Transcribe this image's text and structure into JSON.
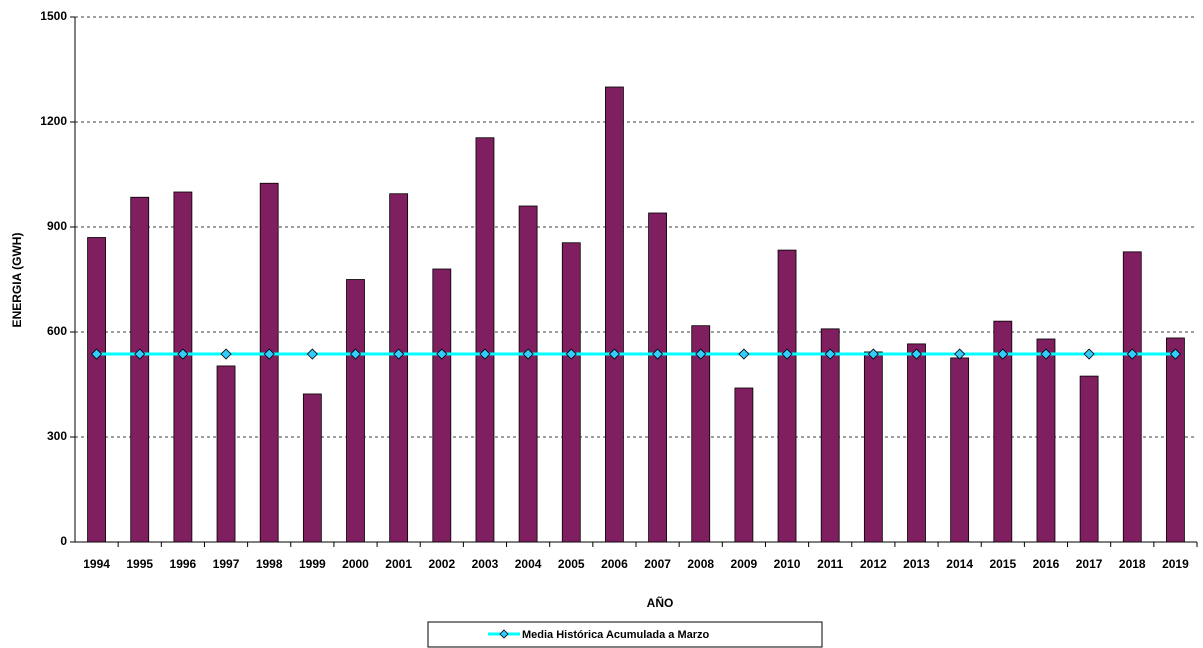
{
  "chart_data": {
    "type": "bar",
    "x_label": "AÑO",
    "y_label": "ENERGIA (GWH)",
    "categories": [
      "1994",
      "1995",
      "1996",
      "1997",
      "1998",
      "1999",
      "2000",
      "2001",
      "2002",
      "2003",
      "2004",
      "2005",
      "2006",
      "2007",
      "2008",
      "2009",
      "2010",
      "2011",
      "2012",
      "2013",
      "2014",
      "2015",
      "2016",
      "2017",
      "2018",
      "2019"
    ],
    "series": [
      {
        "type": "bar",
        "color": "#801f5f",
        "values": [
          870,
          985,
          1000,
          503,
          1025,
          423,
          750,
          995,
          780,
          1155,
          960,
          855,
          1300,
          940,
          618,
          440,
          834,
          609,
          543,
          566,
          526,
          631,
          580,
          474,
          829,
          583
        ]
      },
      {
        "type": "line",
        "name": "Media Histórica Acumulada a Marzo",
        "color": "#00ffff",
        "marker_color": "#33ccff",
        "values": [
          537,
          537,
          537,
          537,
          537,
          537,
          537,
          537,
          537,
          537,
          537,
          537,
          537,
          537,
          537,
          537,
          537,
          537,
          537,
          537,
          537,
          537,
          537,
          537,
          537,
          537
        ]
      }
    ],
    "ylim": [
      0,
      1500
    ],
    "yticks": [
      0,
      300,
      600,
      900,
      1200,
      1500
    ],
    "grid": true,
    "legend": "bottom"
  }
}
